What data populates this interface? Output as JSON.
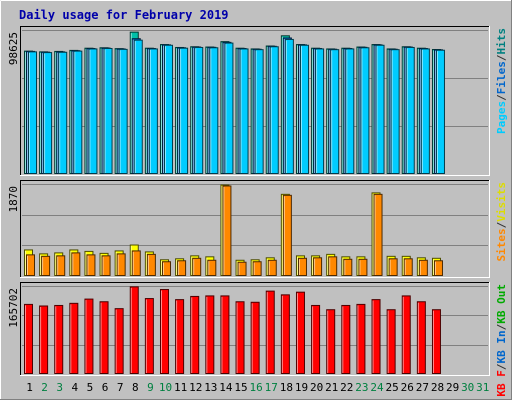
{
  "chart_data": {
    "type": "bar",
    "title": "Daily usage for February 2019",
    "x": [
      "1",
      "2",
      "3",
      "4",
      "5",
      "6",
      "7",
      "8",
      "9",
      "10",
      "11",
      "12",
      "13",
      "14",
      "15",
      "16",
      "17",
      "18",
      "19",
      "20",
      "21",
      "22",
      "23",
      "24",
      "25",
      "26",
      "27",
      "28",
      "29",
      "30",
      "31"
    ],
    "weekend_days": [
      "2",
      "3",
      "9",
      "10",
      "16",
      "17",
      "23",
      "24",
      "30",
      "31"
    ],
    "days_with_data": 28,
    "panels": [
      {
        "name": "pages-files-hits",
        "ymax_label": "98625",
        "ymax": 98625,
        "legend": [
          {
            "text": "Pages",
            "color": "#00ccff"
          },
          {
            "text": "/",
            "color": "#333333"
          },
          {
            "text": "Files",
            "color": "#0066cc"
          },
          {
            "text": "/",
            "color": "#333333"
          },
          {
            "text": "Hits",
            "color": "#008080"
          }
        ],
        "series": [
          {
            "name": "Hits",
            "color": "#00c0a8",
            "values": [
              84500,
              84000,
              84300,
              85000,
              86500,
              86800,
              86200,
              97500,
              86500,
              89000,
              87000,
              87500,
              87300,
              91000,
              86500,
              86000,
              88000,
              95000,
              89000,
              86500,
              86000,
              86500,
              87300,
              89000,
              86000,
              87500,
              86500,
              85600
            ]
          },
          {
            "name": "Files",
            "color": "#0066cc",
            "values": [
              84300,
              83800,
              84000,
              84800,
              86300,
              86600,
              86000,
              93000,
              86300,
              88800,
              86800,
              87300,
              87100,
              90500,
              86300,
              85800,
              87800,
              93500,
              88800,
              86300,
              85800,
              86300,
              87100,
              88800,
              85800,
              87300,
              86300,
              85400
            ]
          },
          {
            "name": "Pages",
            "color": "#00ccff",
            "values": [
              84000,
              83500,
              83700,
              84500,
              86000,
              86300,
              85700,
              92000,
              86000,
              88500,
              86500,
              87000,
              86800,
              90000,
              86000,
              85500,
              87500,
              92500,
              88500,
              86000,
              85500,
              86000,
              86800,
              88500,
              85500,
              87000,
              86000,
              85100
            ]
          }
        ]
      },
      {
        "name": "visits-sites",
        "ymax_label": "1870",
        "ymax": 1870,
        "legend": [
          {
            "text": "Sites",
            "color": "#ff8800"
          },
          {
            "text": "/",
            "color": "#333333"
          },
          {
            "text": "Visits",
            "color": "#dddd00"
          }
        ],
        "series": [
          {
            "name": "Visits",
            "color": "#ffff00",
            "values": [
              540,
              460,
              480,
              540,
              510,
              470,
              520,
              640,
              500,
              340,
              360,
              420,
              400,
              1860,
              330,
              340,
              380,
              1670,
              420,
              420,
              450,
              400,
              400,
              1700,
              410,
              410,
              380,
              370
            ]
          },
          {
            "name": "Sites",
            "color": "#ff8800",
            "values": [
              440,
              410,
              420,
              480,
              440,
              420,
              460,
              520,
              450,
              300,
              320,
              370,
              330,
              1840,
              290,
              300,
              330,
              1650,
              370,
              380,
              400,
              350,
              350,
              1670,
              360,
              360,
              330,
              320
            ]
          }
        ]
      },
      {
        "name": "kb-traffic",
        "ymax_label": "165702",
        "ymax": 165702,
        "legend": [
          {
            "text": "KB F",
            "color": "#ff0000"
          },
          {
            "text": "/",
            "color": "#333333"
          },
          {
            "text": "KB In",
            "color": "#0066cc"
          },
          {
            "text": "/",
            "color": "#333333"
          },
          {
            "text": "KB Out",
            "color": "#00aa00"
          }
        ],
        "series": [
          {
            "name": "KB F",
            "color": "#ff0000",
            "values": [
              132000,
              129000,
              130000,
              134000,
              142000,
              137000,
              124000,
              165000,
              143000,
              160000,
              141000,
              147000,
              148000,
              148000,
              137000,
              136000,
              157000,
              150000,
              155000,
              130000,
              122000,
              130000,
              132000,
              141000,
              122000,
              148000,
              137000,
              122000
            ]
          }
        ]
      }
    ],
    "grid": true
  }
}
